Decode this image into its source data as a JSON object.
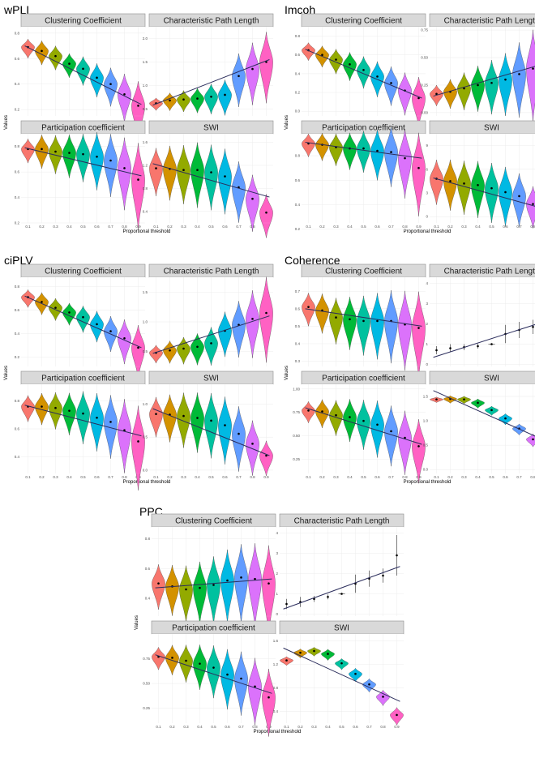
{
  "colors": [
    "#F8766D",
    "#D39200",
    "#93AA00",
    "#00BA38",
    "#00C19F",
    "#00B9E3",
    "#619CFF",
    "#DB72FB",
    "#FF61C3"
  ],
  "x_tick_labels": [
    "0.1",
    "0.2",
    "0.3",
    "0.4",
    "0.5",
    "0.6",
    "0.7",
    "0.8",
    "0.9"
  ],
  "labels": {
    "y_axis_title": "Values",
    "x_axis_title": "Proportional threshold"
  },
  "chart_data": [
    {
      "type": "violin",
      "group": "wPLI",
      "panels": [
        {
          "strip": "Clustering Coefficient",
          "yticks": [
            "0.8",
            "0.6",
            "0.4",
            "0.2"
          ],
          "ylim": [
            0.15,
            0.85
          ],
          "yticks_num": [
            0.8,
            0.6,
            0.4,
            0.2
          ],
          "means": [
            0.69,
            0.66,
            0.62,
            0.56,
            0.52,
            0.45,
            0.4,
            0.32,
            0.23
          ],
          "spread": [
            0.04,
            0.05,
            0.05,
            0.05,
            0.06,
            0.07,
            0.08,
            0.1,
            0.12
          ],
          "trend": [
            0.7,
            0.24
          ]
        },
        {
          "strip": "Characteristic Path Length",
          "yticks": [
            "2.0",
            "1.5",
            "1.0",
            "0.5"
          ],
          "ylim": [
            0.35,
            2.25
          ],
          "yticks_num": [
            2.0,
            1.5,
            1.0,
            0.5
          ],
          "means": [
            0.62,
            0.68,
            0.7,
            0.72,
            0.76,
            0.8,
            1.2,
            1.35,
            1.5
          ],
          "spread": [
            0.07,
            0.1,
            0.12,
            0.14,
            0.17,
            0.2,
            0.3,
            0.35,
            0.4
          ],
          "trend": [
            0.58,
            1.55
          ]
        },
        {
          "strip": "Participation coefficient",
          "yticks": [
            "0.8",
            "0.6",
            "0.4",
            "0.2"
          ],
          "ylim": [
            0.2,
            0.9
          ],
          "yticks_num": [
            0.8,
            0.6,
            0.4,
            0.2
          ],
          "means": [
            0.78,
            0.78,
            0.76,
            0.75,
            0.74,
            0.72,
            0.69,
            0.63,
            0.54
          ],
          "spread": [
            0.05,
            0.07,
            0.08,
            0.09,
            0.1,
            0.12,
            0.13,
            0.15,
            0.18
          ],
          "trend": [
            0.79,
            0.57
          ]
        },
        {
          "strip": "SWI",
          "yticks": [
            "1.6",
            "1.2",
            "0.8",
            "0.4"
          ],
          "ylim": [
            0.2,
            1.75
          ],
          "yticks_num": [
            1.6,
            1.2,
            0.8,
            0.4
          ],
          "means": [
            1.15,
            1.14,
            1.12,
            1.12,
            1.08,
            1.01,
            0.82,
            0.62,
            0.38
          ],
          "spread": [
            0.22,
            0.25,
            0.27,
            0.3,
            0.3,
            0.3,
            0.28,
            0.26,
            0.2
          ],
          "trend": [
            1.23,
            0.65
          ]
        }
      ]
    },
    {
      "type": "violin",
      "group": "Imcoh",
      "panels": [
        {
          "strip": "Clustering Coefficient",
          "yticks": [
            "0.8",
            "0.6",
            "0.4",
            "0.2",
            "0.0"
          ],
          "ylim": [
            -0.05,
            0.9
          ],
          "yticks_num": [
            0.8,
            0.6,
            0.4,
            0.2,
            0.0
          ],
          "means": [
            0.65,
            0.6,
            0.55,
            0.5,
            0.44,
            0.37,
            0.3,
            0.22,
            0.14
          ],
          "spread": [
            0.05,
            0.06,
            0.07,
            0.08,
            0.09,
            0.1,
            0.11,
            0.12,
            0.14
          ],
          "trend": [
            0.66,
            0.14
          ]
        },
        {
          "strip": "Characteristic Path Length",
          "yticks": [
            "0.75",
            "0.50",
            "0.25",
            "0.00"
          ],
          "ylim": [
            -0.03,
            0.78
          ],
          "yticks_num": [
            0.75,
            0.5,
            0.25,
            0.0
          ],
          "means": [
            0.17,
            0.19,
            0.22,
            0.25,
            0.27,
            0.3,
            0.35,
            0.4,
            0.47
          ],
          "spread": [
            0.05,
            0.07,
            0.09,
            0.11,
            0.13,
            0.15,
            0.18,
            0.22,
            0.25
          ],
          "trend": [
            0.15,
            0.46
          ]
        },
        {
          "strip": "Participation coefficient",
          "yticks": [
            "0.8",
            "0.6",
            "0.4",
            "0.2"
          ],
          "ylim": [
            0.25,
            0.98
          ],
          "yticks_num": [
            0.8,
            0.6,
            0.4,
            0.2
          ],
          "means": [
            0.9,
            0.89,
            0.87,
            0.86,
            0.86,
            0.84,
            0.83,
            0.78,
            0.7
          ],
          "spread": [
            0.05,
            0.06,
            0.07,
            0.08,
            0.09,
            0.11,
            0.13,
            0.15,
            0.18
          ],
          "trend": [
            0.91,
            0.78
          ]
        },
        {
          "strip": "SWI",
          "yticks": [
            "9",
            "6",
            "3",
            "0"
          ],
          "ylim": [
            -0.8,
            10.5
          ],
          "yticks_num": [
            9,
            6,
            3,
            0
          ],
          "means": [
            4.8,
            4.5,
            4.2,
            4.0,
            3.6,
            3.1,
            2.6,
            1.6,
            0.8
          ],
          "spread": [
            1.5,
            1.7,
            1.8,
            1.9,
            2.0,
            2.0,
            1.8,
            1.4,
            0.8
          ],
          "trend": [
            4.9,
            0.8
          ]
        }
      ]
    },
    {
      "type": "violin",
      "group": "ciPLV",
      "panels": [
        {
          "strip": "Clustering Coefficient",
          "yticks": [
            "0.8",
            "0.6",
            "0.4",
            "0.2"
          ],
          "ylim": [
            0.12,
            0.88
          ],
          "yticks_num": [
            0.8,
            0.6,
            0.4,
            0.2
          ],
          "means": [
            0.71,
            0.67,
            0.62,
            0.58,
            0.54,
            0.48,
            0.42,
            0.36,
            0.28
          ],
          "spread": [
            0.04,
            0.05,
            0.05,
            0.05,
            0.06,
            0.07,
            0.08,
            0.1,
            0.12
          ],
          "trend": [
            0.72,
            0.28
          ]
        },
        {
          "strip": "Characteristic Path Length",
          "yticks": [
            "1.5",
            "1.0",
            "0.5"
          ],
          "ylim": [
            0.25,
            1.75
          ],
          "yticks_num": [
            1.5,
            1.0,
            0.5
          ],
          "means": [
            0.48,
            0.52,
            0.55,
            0.58,
            0.64,
            0.85,
            0.95,
            1.05,
            1.15
          ],
          "spread": [
            0.08,
            0.1,
            0.12,
            0.14,
            0.17,
            0.2,
            0.25,
            0.3,
            0.38
          ],
          "trend": [
            0.47,
            1.1
          ]
        },
        {
          "strip": "Participation coefficient",
          "yticks": [
            "0.8",
            "0.6",
            "0.4"
          ],
          "ylim": [
            0.28,
            0.92
          ],
          "yticks_num": [
            0.8,
            0.6,
            0.4
          ],
          "means": [
            0.76,
            0.76,
            0.75,
            0.73,
            0.71,
            0.68,
            0.65,
            0.59,
            0.51
          ],
          "spread": [
            0.05,
            0.06,
            0.07,
            0.08,
            0.1,
            0.11,
            0.12,
            0.14,
            0.16
          ],
          "trend": [
            0.77,
            0.55
          ]
        },
        {
          "strip": "SWI",
          "yticks": [
            "1.0",
            "0.5",
            "0.0"
          ],
          "ylim": [
            -0.05,
            1.3
          ],
          "yticks_num": [
            1.0,
            0.5,
            0.0
          ],
          "means": [
            0.85,
            0.84,
            0.82,
            0.79,
            0.75,
            0.68,
            0.55,
            0.4,
            0.22
          ],
          "spread": [
            0.16,
            0.19,
            0.22,
            0.24,
            0.26,
            0.27,
            0.26,
            0.22,
            0.14
          ],
          "trend": [
            0.93,
            0.22
          ]
        }
      ]
    },
    {
      "type": "violin",
      "group": "Coherence",
      "panels": [
        {
          "strip": "Clustering Coefficient",
          "yticks": [
            "0.7",
            "0.6",
            "0.5",
            "0.4",
            "0.3"
          ],
          "ylim": [
            0.27,
            0.78
          ],
          "yticks_num": [
            0.7,
            0.6,
            0.5,
            0.4,
            0.3
          ],
          "means": [
            0.61,
            0.59,
            0.55,
            0.54,
            0.53,
            0.53,
            0.53,
            0.51,
            0.49
          ],
          "spread": [
            0.05,
            0.06,
            0.07,
            0.08,
            0.09,
            0.1,
            0.11,
            0.12,
            0.13
          ],
          "trend": [
            0.6,
            0.5
          ]
        },
        {
          "strip": "Characteristic Path Length",
          "yticks": [
            "4",
            "3",
            "2",
            "1",
            "0"
          ],
          "ylim": [
            -0.1,
            4.3
          ],
          "yticks_num": [
            4,
            3,
            2,
            1,
            0
          ],
          "means": [
            0.7,
            0.8,
            0.85,
            0.9,
            1.0,
            1.5,
            1.7,
            1.85,
            2.8
          ],
          "errors": [
            0.2,
            0.2,
            0.15,
            0.12,
            0.0,
            0.45,
            0.4,
            0.35,
            1.1
          ],
          "style": "point",
          "trend": [
            0.35,
            2.2
          ]
        },
        {
          "strip": "Participation coefficient",
          "yticks": [
            "1.00",
            "0.75",
            "0.50",
            "0.25"
          ],
          "ylim": [
            0.1,
            1.05
          ],
          "yticks_num": [
            1.0,
            0.75,
            0.5,
            0.25
          ],
          "means": [
            0.77,
            0.76,
            0.72,
            0.7,
            0.66,
            0.62,
            0.55,
            0.48,
            0.39
          ],
          "spread": [
            0.06,
            0.08,
            0.1,
            0.12,
            0.14,
            0.16,
            0.17,
            0.18,
            0.18
          ],
          "trend": [
            0.8,
            0.41
          ]
        },
        {
          "strip": "SWI",
          "yticks": [
            "1.5",
            "1.0",
            "0.5",
            "0.0"
          ],
          "ylim": [
            -0.08,
            1.75
          ],
          "yticks_num": [
            1.5,
            1.0,
            0.5,
            0.0
          ],
          "means": [
            1.44,
            1.45,
            1.44,
            1.37,
            1.22,
            1.05,
            0.84,
            0.62,
            0.32
          ],
          "spread": [
            0.03,
            0.04,
            0.04,
            0.05,
            0.05,
            0.06,
            0.06,
            0.07,
            0.08
          ],
          "trend": [
            1.62,
            0.55
          ]
        }
      ]
    },
    {
      "type": "violin",
      "group": "PPC",
      "panels": [
        {
          "strip": "Clustering Coefficient",
          "yticks": [
            "0.8",
            "0.6",
            "0.4"
          ],
          "ylim": [
            0.28,
            0.88
          ],
          "yticks_num": [
            0.8,
            0.6,
            0.4
          ],
          "means": [
            0.5,
            0.48,
            0.46,
            0.47,
            0.49,
            0.52,
            0.54,
            0.53,
            0.5
          ],
          "spread": [
            0.08,
            0.09,
            0.1,
            0.11,
            0.12,
            0.13,
            0.14,
            0.15,
            0.16
          ],
          "trend": [
            0.47,
            0.53
          ]
        },
        {
          "strip": "Characteristic Path Length",
          "yticks": [
            "4",
            "3",
            "2",
            "1",
            "0"
          ],
          "ylim": [
            -0.1,
            4.3
          ],
          "yticks_num": [
            4,
            3,
            2,
            1,
            0
          ],
          "means": [
            0.5,
            0.6,
            0.75,
            0.85,
            1.0,
            1.5,
            1.75,
            1.9,
            2.9
          ],
          "errors": [
            0.25,
            0.25,
            0.15,
            0.12,
            0.0,
            0.45,
            0.4,
            0.35,
            1.0
          ],
          "style": "point",
          "trend": [
            0.25,
            2.35
          ]
        },
        {
          "strip": "Participation coefficient",
          "yticks": [
            "0.75",
            "0.50",
            "0.25"
          ],
          "ylim": [
            0.1,
            1.0
          ],
          "yticks_num": [
            0.75,
            0.5,
            0.25
          ],
          "means": [
            0.77,
            0.76,
            0.73,
            0.7,
            0.66,
            0.59,
            0.55,
            0.47,
            0.36
          ],
          "spread": [
            0.06,
            0.08,
            0.1,
            0.12,
            0.14,
            0.16,
            0.17,
            0.18,
            0.18
          ],
          "trend": [
            0.79,
            0.4
          ]
        },
        {
          "strip": "SWI",
          "yticks": [
            "1.6",
            "1.2",
            "0.8",
            "0.4"
          ],
          "ylim": [
            0.2,
            1.72
          ],
          "yticks_num": [
            1.6,
            1.2,
            0.8,
            0.4
          ],
          "means": [
            1.27,
            1.4,
            1.43,
            1.38,
            1.22,
            1.04,
            0.86,
            0.65,
            0.34
          ],
          "spread": [
            0.04,
            0.04,
            0.04,
            0.05,
            0.05,
            0.06,
            0.06,
            0.07,
            0.08
          ],
          "trend": [
            1.48,
            0.57
          ]
        }
      ]
    }
  ]
}
